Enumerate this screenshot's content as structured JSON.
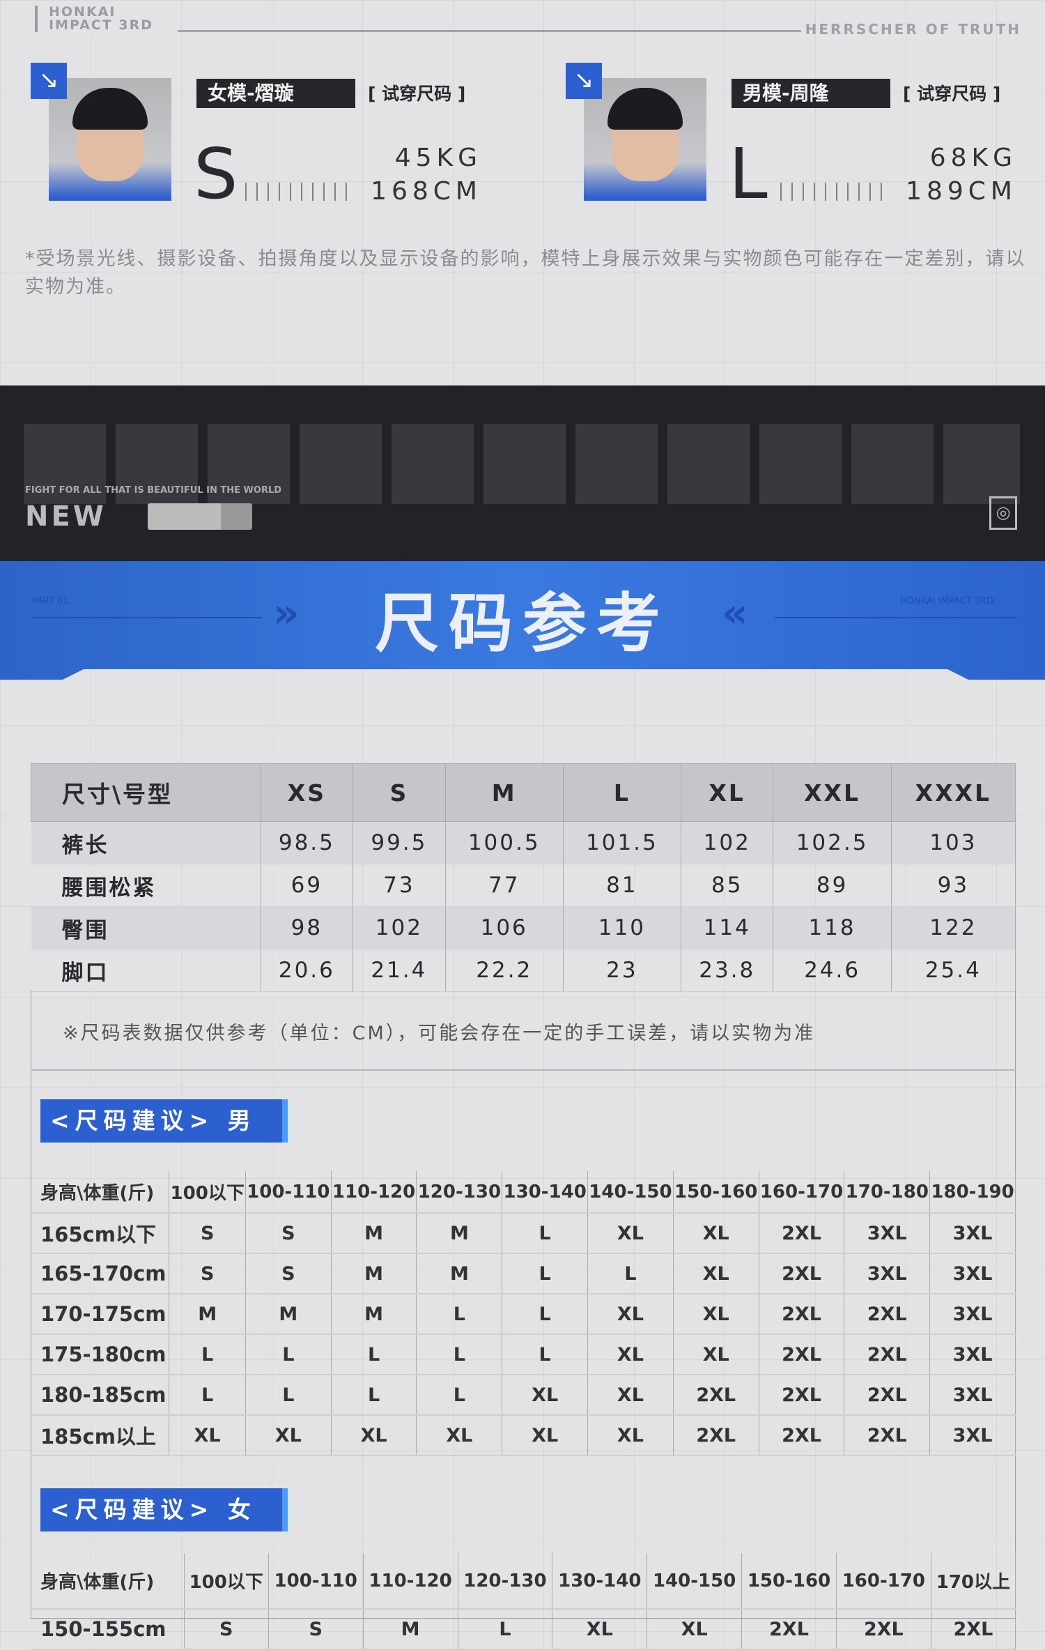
{
  "header": {
    "brand": "HONKAI\nIMPACT 3RD",
    "brand_line1": "HONKAI",
    "brand_line2": "IMPACT 3RD",
    "subtitle": "HERRSCHER OF TRUTH"
  },
  "models": [
    {
      "name": "女模-熠璇",
      "tag": "[ 试穿尺码 ]",
      "size": "S",
      "weight": "45KG",
      "height": "168CM"
    },
    {
      "name": "男模-周隆",
      "tag": "[ 试穿尺码 ]",
      "size": "L",
      "weight": "68KG",
      "height": "189CM"
    }
  ],
  "disclaimer": "*受场景光线、摄影设备、拍摄角度以及显示设备的影响，模特上身展示效果与实物颜色可能存在一定差别，请以实物为准。",
  "dark_band": {
    "slogan": "FIGHT FOR ALL THAT IS BEAUTIFUL IN THE WORLD",
    "logo": "NEW"
  },
  "banner": {
    "title": "尺码参考",
    "left_tag": "PART 01",
    "right_tag": "HONKAI IMPACT 3RD",
    "accent": "#2d64c8"
  },
  "size_table": {
    "headers": [
      "尺寸\\号型",
      "XS",
      "S",
      "M",
      "L",
      "XL",
      "XXL",
      "XXXL"
    ],
    "rows": [
      [
        "裤长",
        "98.5",
        "99.5",
        "100.5",
        "101.5",
        "102",
        "102.5",
        "103"
      ],
      [
        "腰围松紧",
        "69",
        "73",
        "77",
        "81",
        "85",
        "89",
        "93"
      ],
      [
        "臀围",
        "98",
        "102",
        "106",
        "110",
        "114",
        "118",
        "122"
      ],
      [
        "脚口",
        "20.6",
        "21.4",
        "22.2",
        "23",
        "23.8",
        "24.6",
        "25.4"
      ]
    ],
    "note": "※尺码表数据仅供参考（单位：CM），可能会存在一定的手工误差，请以实物为准"
  },
  "men": {
    "label": "<尺码建议> 男",
    "headers": [
      "身高\\体重(斤)",
      "100以下",
      "100-110",
      "110-120",
      "120-130",
      "130-140",
      "140-150",
      "150-160",
      "160-170",
      "170-180",
      "180-190"
    ],
    "rows": [
      [
        "165cm以下",
        "S",
        "S",
        "M",
        "M",
        "L",
        "XL",
        "XL",
        "2XL",
        "3XL",
        "3XL"
      ],
      [
        "165-170cm",
        "S",
        "S",
        "M",
        "M",
        "L",
        "L",
        "XL",
        "2XL",
        "3XL",
        "3XL"
      ],
      [
        "170-175cm",
        "M",
        "M",
        "M",
        "L",
        "L",
        "XL",
        "XL",
        "2XL",
        "2XL",
        "3XL"
      ],
      [
        "175-180cm",
        "L",
        "L",
        "L",
        "L",
        "L",
        "XL",
        "XL",
        "2XL",
        "2XL",
        "3XL"
      ],
      [
        "180-185cm",
        "L",
        "L",
        "L",
        "L",
        "XL",
        "XL",
        "2XL",
        "2XL",
        "2XL",
        "3XL"
      ],
      [
        "185cm以上",
        "XL",
        "XL",
        "XL",
        "XL",
        "XL",
        "XL",
        "2XL",
        "2XL",
        "2XL",
        "3XL"
      ]
    ]
  },
  "women": {
    "label": "<尺码建议> 女",
    "headers": [
      "身高\\体重(斤)",
      "100以下",
      "100-110",
      "110-120",
      "120-130",
      "130-140",
      "140-150",
      "150-160",
      "160-170",
      "170以上"
    ],
    "rows": [
      [
        "150-155cm",
        "S",
        "S",
        "M",
        "L",
        "XL",
        "XL",
        "2XL",
        "2XL",
        "2XL"
      ]
    ]
  }
}
